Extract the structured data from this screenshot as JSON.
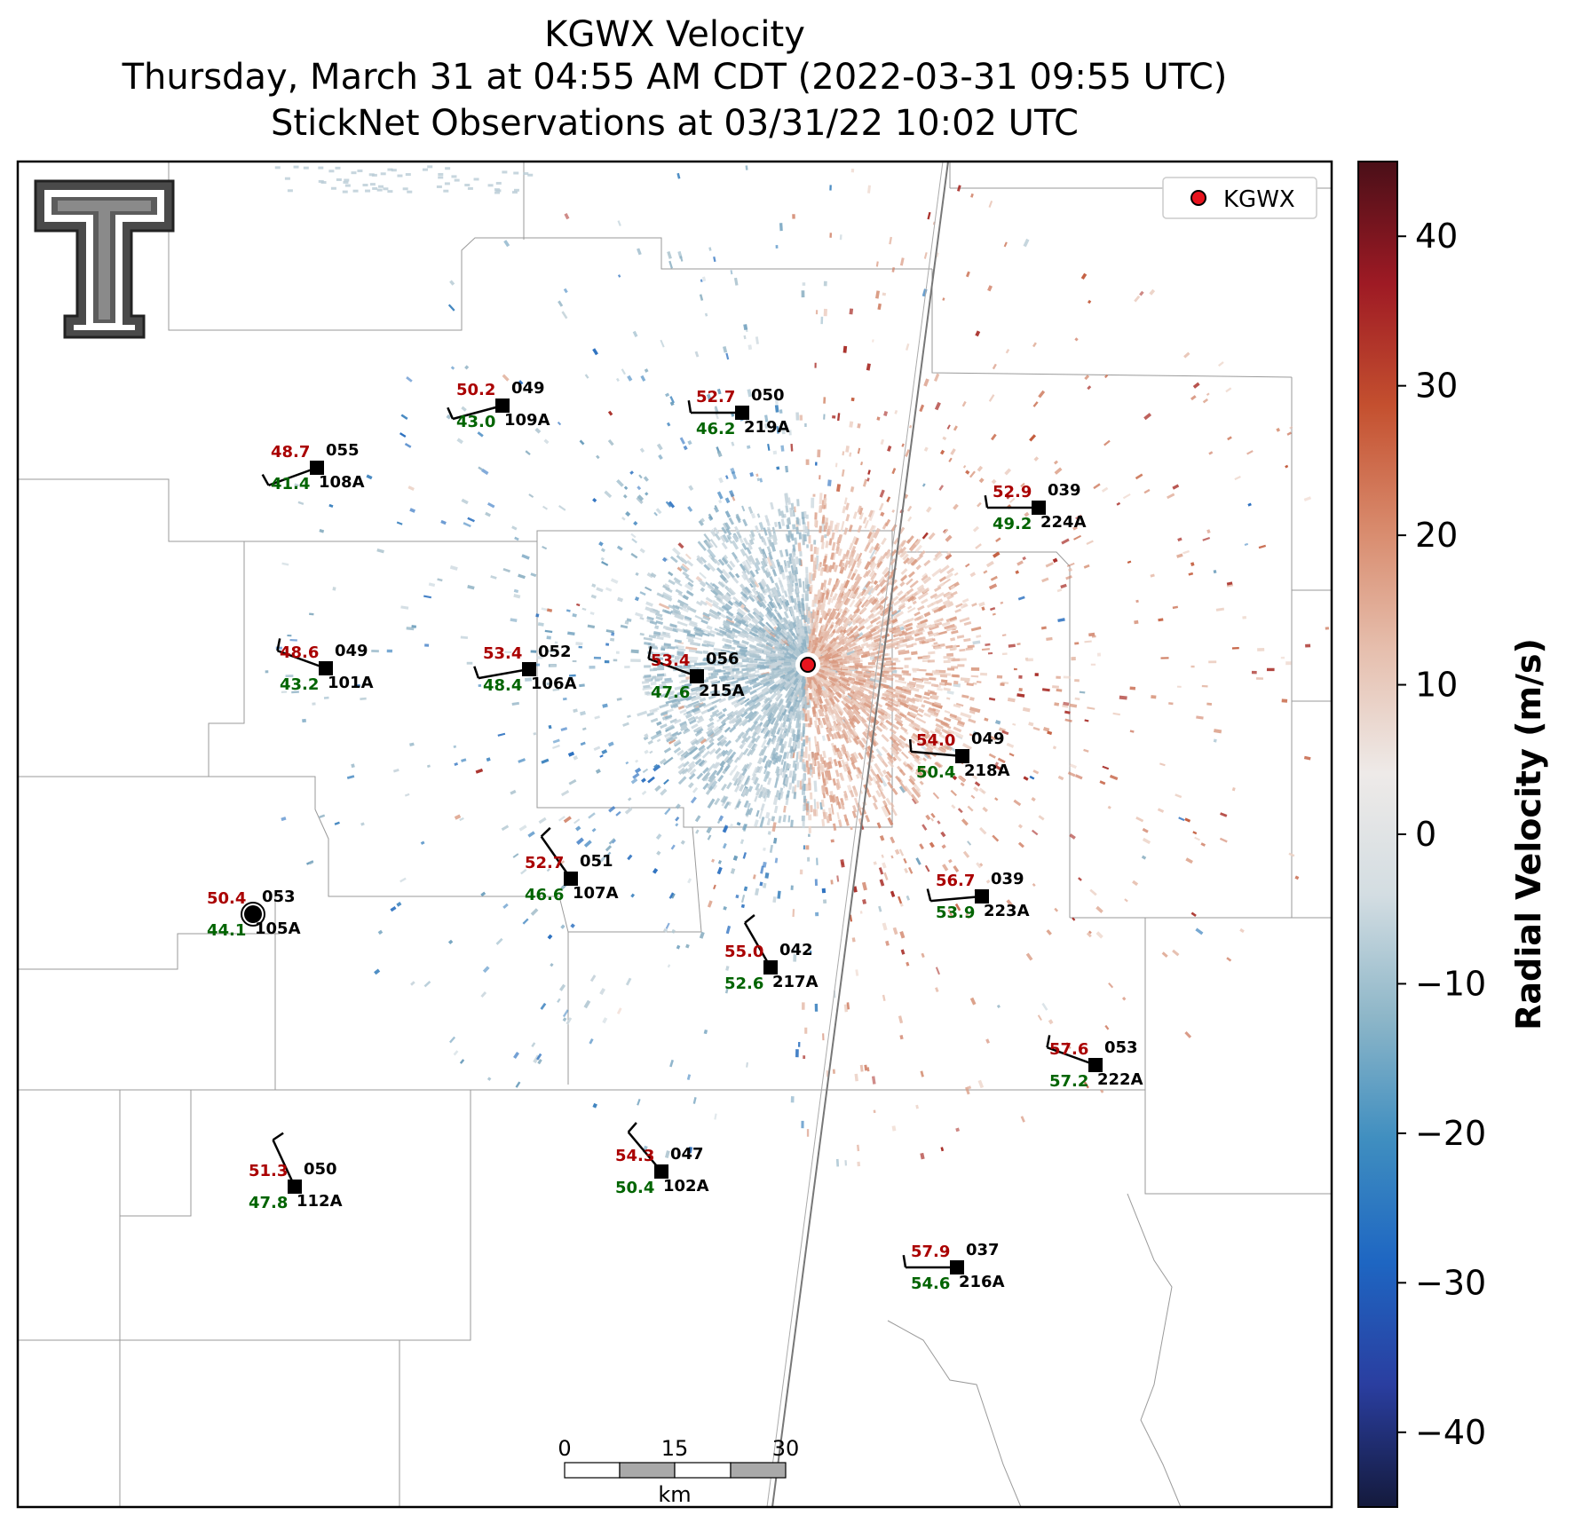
{
  "title": {
    "line1": "KGWX Velocity",
    "line2": "Thursday, March 31 at 04:55 AM CDT (2022-03-31 09:55 UTC)",
    "line3": "StickNet Observations at 03/31/22 10:02 UTC"
  },
  "legend": {
    "label": "KGWX",
    "marker_color": "#e8141e"
  },
  "colorbar": {
    "label": "Radial Velocity (m/s)",
    "ticks": [
      "40",
      "30",
      "20",
      "10",
      "0",
      "−10",
      "−20",
      "−30",
      "−40"
    ],
    "range": [
      -45,
      45
    ],
    "colors": [
      "#141a3c",
      "#2a3ea0",
      "#1e66c2",
      "#3f8ec0",
      "#8db6c8",
      "#d3dde2",
      "#eeeae8",
      "#e6bfae",
      "#d88a6c",
      "#c4502f",
      "#9e1a24",
      "#4a0f18"
    ]
  },
  "scalebar": {
    "ticks": [
      "0",
      "15",
      "30"
    ],
    "unit": "km"
  },
  "logo": "texas-tech-double-t-logo",
  "stations": [
    {
      "id": "108A",
      "t": "48.7",
      "td": "41.4",
      "dir": "055"
    },
    {
      "id": "109A",
      "t": "50.2",
      "td": "43.0",
      "dir": "049"
    },
    {
      "id": "219A",
      "t": "52.7",
      "td": "46.2",
      "dir": "050"
    },
    {
      "id": "224A",
      "t": "52.9",
      "td": "49.2",
      "dir": "039"
    },
    {
      "id": "101A",
      "t": "48.6",
      "td": "43.2",
      "dir": "049"
    },
    {
      "id": "106A",
      "t": "53.4",
      "td": "48.4",
      "dir": "052"
    },
    {
      "id": "215A",
      "t": "53.4",
      "td": "47.6",
      "dir": "056"
    },
    {
      "id": "218A",
      "t": "54.0",
      "td": "50.4",
      "dir": "049"
    },
    {
      "id": "107A",
      "t": "52.7",
      "td": "46.6",
      "dir": "051"
    },
    {
      "id": "105A",
      "t": "50.4",
      "td": "44.1",
      "dir": "053"
    },
    {
      "id": "223A",
      "t": "56.7",
      "td": "53.9",
      "dir": "039"
    },
    {
      "id": "217A",
      "t": "55.0",
      "td": "52.6",
      "dir": "042"
    },
    {
      "id": "222A",
      "t": "57.6",
      "td": "57.2",
      "dir": "053"
    },
    {
      "id": "112A",
      "t": "51.3",
      "td": "47.8",
      "dir": "050"
    },
    {
      "id": "102A",
      "t": "54.3",
      "td": "50.4",
      "dir": "047"
    },
    {
      "id": "216A",
      "t": "57.9",
      "td": "54.6",
      "dir": "037"
    }
  ]
}
